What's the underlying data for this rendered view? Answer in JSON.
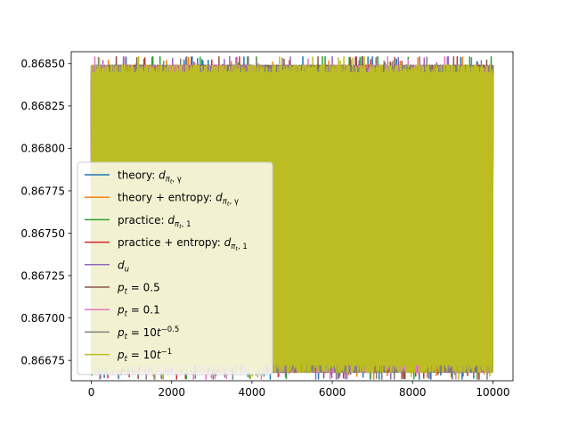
{
  "chart_data": {
    "type": "line",
    "xlim": [
      -500,
      10500
    ],
    "ylim": [
      0.86663,
      0.86857
    ],
    "x_ticks": [
      0,
      2000,
      4000,
      6000,
      8000,
      10000
    ],
    "x_tick_labels": [
      "0",
      "2000",
      "4000",
      "6000",
      "8000",
      "10000"
    ],
    "y_ticks": [
      0.86675,
      0.867,
      0.86725,
      0.8675,
      0.86775,
      0.868,
      0.86825,
      0.8685
    ],
    "y_tick_labels": [
      "0.86675",
      "0.86700",
      "0.86725",
      "0.86750",
      "0.86775",
      "0.86800",
      "0.86825",
      "0.86850"
    ],
    "x_range": [
      0,
      10000
    ],
    "band": {
      "low": 0.86668,
      "high": 0.86849,
      "peak_low": 0.86664,
      "peak_high": 0.86854
    },
    "grid": false,
    "legend_position": "lower-left",
    "series": [
      {
        "name_main": "theory: ",
        "name_math": "d",
        "name_sub": "π",
        "name_sub2": "t",
        "name_sub3": ", γ",
        "color": "#1f77b4"
      },
      {
        "name_main": "theory + entropy: ",
        "name_math": "d",
        "name_sub": "π",
        "name_sub2": "t",
        "name_sub3": ", γ",
        "color": "#ff7f0e"
      },
      {
        "name_main": "practice: ",
        "name_math": "d",
        "name_sub": "π",
        "name_sub2": "t",
        "name_sub3": ", 1",
        "color": "#2ca02c"
      },
      {
        "name_main": "practice + entropy: ",
        "name_math": "d",
        "name_sub": "π",
        "name_sub2": "t",
        "name_sub3": ", 1",
        "color": "#d62728"
      },
      {
        "name_main": "",
        "name_math": "d",
        "name_sub": "u",
        "name_sub2": "",
        "name_sub3": "",
        "color": "#9467bd"
      },
      {
        "name_main": "",
        "name_math": "p",
        "name_sub": "t",
        "name_eq": " = 0.5",
        "color": "#8c564b"
      },
      {
        "name_main": "",
        "name_math": "p",
        "name_sub": "t",
        "name_eq": " = 0.1",
        "color": "#e377c2"
      },
      {
        "name_main": "",
        "name_math": "p",
        "name_sub": "t",
        "name_eq": " = 10",
        "name_sup": "t",
        "name_sup_exp": "−0.5",
        "color": "#7f7f7f"
      },
      {
        "name_main": "",
        "name_math": "p",
        "name_sub": "t",
        "name_eq": " = 10",
        "name_sup": "t",
        "name_sup_exp": "−1",
        "color": "#bcbd22"
      }
    ]
  }
}
